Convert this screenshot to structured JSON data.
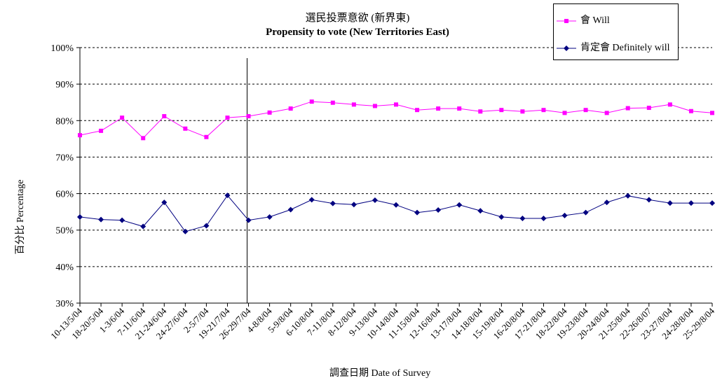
{
  "colors": {
    "will": "#ff00ff",
    "definitely": "#000080",
    "grid": "#000000"
  },
  "chart_data": {
    "type": "line",
    "title_zh": "選民投票意欲 (新界東)",
    "title_en": "Propensity to vote (New Territories East)",
    "xlabel": "調查日期 Date of Survey",
    "ylabel": "百分比 Percentage",
    "ylim": [
      30,
      100
    ],
    "yticks": [
      "30%",
      "40%",
      "50%",
      "60%",
      "70%",
      "80%",
      "90%",
      "100%"
    ],
    "grid": "horizontal dashed",
    "legend": "top-right",
    "marker_after_category": "26-29/7/04",
    "categories": [
      "10-13/5/04",
      "18-20/5/04",
      "1-3/6/04",
      "7-11/6/04",
      "21-24/6/04",
      "24-27/6/04",
      "2-5/7/04",
      "19-21/7/04",
      "26-29/7/04",
      "4-8/8/04",
      "5-9/8/04",
      "6-10/8/04",
      "7-11/8/04",
      "8-12/8/04",
      "9-13/8/04",
      "10-14/8/04",
      "11-15/8/04",
      "12-16/8/04",
      "13-17/8/04",
      "14-18/8/04",
      "15-19/8/04",
      "16-20/8/04",
      "17-21/8/04",
      "18-22/8/04",
      "19-23/8/04",
      "20-24/8/04",
      "21-25/8/04",
      "22-26/8/07",
      "23-27/8/04",
      "24-28/8/04",
      "25-29/8/04"
    ],
    "series": [
      {
        "name": "會 Will",
        "color": "#ff00ff",
        "marker": "square",
        "values": [
          76,
          77.2,
          80.8,
          75.2,
          81.2,
          77.8,
          75.5,
          80.8,
          81.2,
          82.2,
          83.3,
          85.2,
          84.9,
          84.4,
          84,
          84.4,
          82.9,
          83.3,
          83.3,
          82.5,
          82.9,
          82.5,
          82.9,
          82.1,
          82.9,
          82.1,
          83.4,
          83.5,
          84.4,
          82.6,
          82.1
        ]
      },
      {
        "name": "肯定會 Definitely will",
        "color": "#000080",
        "marker": "diamond",
        "values": [
          53.6,
          52.9,
          52.7,
          51,
          57.6,
          49.6,
          51.2,
          59.5,
          52.7,
          53.6,
          55.6,
          58.3,
          57.3,
          57,
          58.2,
          56.9,
          54.8,
          55.5,
          56.9,
          55.3,
          53.6,
          53.2,
          53.2,
          54,
          54.8,
          57.6,
          59.4,
          58.3,
          57.4,
          57.4,
          57.4
        ]
      }
    ]
  }
}
